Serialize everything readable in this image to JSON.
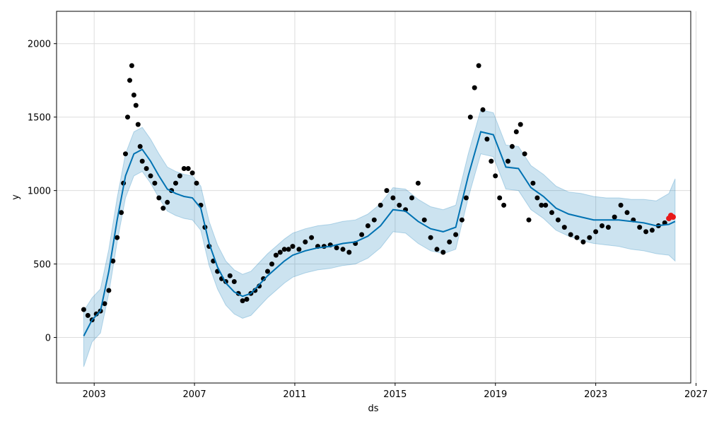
{
  "chart_data": {
    "type": "line",
    "title": "",
    "xlabel": "ds",
    "ylabel": "y",
    "x_ticks": [
      "2003",
      "2007",
      "2011",
      "2015",
      "2019",
      "2023",
      "2027"
    ],
    "y_ticks": [
      "0",
      "500",
      "1000",
      "1500",
      "2000"
    ],
    "xlim": [
      "2001-07-01",
      "2026-10-15"
    ],
    "ylim": [
      -310,
      2220
    ],
    "grid": true,
    "colors": {
      "forecast_line": "#0072B2",
      "uncertainty_band": "#0072B2",
      "observed_points": "#000000",
      "highlight_points": "#e8191a"
    },
    "series": [
      {
        "kind": "observed",
        "x": [
          "2002-08",
          "2002-10",
          "2002-12",
          "2003-02",
          "2003-04",
          "2003-06",
          "2003-08",
          "2003-10",
          "2003-12",
          "2004-02",
          "2004-03",
          "2004-04",
          "2004-05",
          "2004-06",
          "2004-07",
          "2004-08",
          "2004-09",
          "2004-10",
          "2004-11",
          "2004-12",
          "2005-02",
          "2005-04",
          "2005-06",
          "2005-08",
          "2005-10",
          "2005-12",
          "2006-02",
          "2006-04",
          "2006-06",
          "2006-08",
          "2006-10",
          "2006-12",
          "2007-02",
          "2007-04",
          "2007-06",
          "2007-08",
          "2007-10",
          "2007-12",
          "2008-02",
          "2008-04",
          "2008-06",
          "2008-08",
          "2008-10",
          "2008-12",
          "2009-02",
          "2009-04",
          "2009-06",
          "2009-08",
          "2009-10",
          "2009-12",
          "2010-02",
          "2010-04",
          "2010-06",
          "2010-08",
          "2010-10",
          "2010-12",
          "2011-03",
          "2011-06",
          "2011-09",
          "2011-12",
          "2012-03",
          "2012-06",
          "2012-09",
          "2012-12",
          "2013-03",
          "2013-06",
          "2013-09",
          "2013-12",
          "2014-03",
          "2014-06",
          "2014-09",
          "2014-12",
          "2015-03",
          "2015-06",
          "2015-09",
          "2015-12",
          "2016-03",
          "2016-06",
          "2016-09",
          "2016-12",
          "2017-03",
          "2017-06",
          "2017-09",
          "2017-11",
          "2018-01",
          "2018-03",
          "2018-05",
          "2018-07",
          "2018-09",
          "2018-11",
          "2019-01",
          "2019-03",
          "2019-05",
          "2019-07",
          "2019-09",
          "2019-11",
          "2020-01",
          "2020-03",
          "2020-05",
          "2020-07",
          "2020-09",
          "2020-11",
          "2021-01",
          "2021-04",
          "2021-07",
          "2021-10",
          "2022-01",
          "2022-04",
          "2022-07",
          "2022-10",
          "2023-01",
          "2023-04",
          "2023-07",
          "2023-10",
          "2024-01",
          "2024-04",
          "2024-07",
          "2024-10",
          "2025-01",
          "2025-04",
          "2025-07",
          "2025-10",
          "2026-01"
        ],
        "y": [
          190,
          150,
          120,
          160,
          180,
          230,
          320,
          520,
          680,
          850,
          1050,
          1250,
          1500,
          1750,
          1850,
          1650,
          1580,
          1450,
          1300,
          1200,
          1150,
          1100,
          1050,
          950,
          880,
          920,
          1000,
          1050,
          1100,
          1150,
          1150,
          1120,
          1050,
          900,
          750,
          620,
          520,
          450,
          400,
          380,
          420,
          380,
          300,
          250,
          260,
          300,
          320,
          350,
          400,
          450,
          500,
          560,
          580,
          600,
          600,
          620,
          600,
          650,
          680,
          620,
          620,
          630,
          610,
          600,
          580,
          640,
          700,
          760,
          800,
          900,
          1000,
          950,
          900,
          870,
          950,
          1050,
          800,
          680,
          600,
          580,
          650,
          700,
          800,
          950,
          1500,
          1700,
          1850,
          1550,
          1350,
          1200,
          1100,
          950,
          900,
          1200,
          1300,
          1400,
          1450,
          1250,
          800,
          1050,
          950,
          900,
          900,
          850,
          800,
          750,
          700,
          680,
          650,
          680,
          720,
          760,
          750,
          820,
          900,
          850,
          800,
          750,
          720,
          730,
          760,
          780,
          830
        ]
      },
      {
        "kind": "highlight",
        "x": [
          "2025-12",
          "2026-01",
          "2026-02"
        ],
        "y": [
          810,
          830,
          820
        ]
      }
    ],
    "forecast": {
      "x": [
        "2002-08",
        "2002-12",
        "2003-04",
        "2003-08",
        "2003-12",
        "2004-04",
        "2004-08",
        "2004-12",
        "2005-04",
        "2005-08",
        "2005-12",
        "2006-04",
        "2006-08",
        "2006-12",
        "2007-04",
        "2007-08",
        "2007-12",
        "2008-04",
        "2008-08",
        "2008-12",
        "2009-04",
        "2009-08",
        "2009-12",
        "2010-04",
        "2010-08",
        "2010-12",
        "2011-06",
        "2011-12",
        "2012-06",
        "2012-12",
        "2013-06",
        "2013-12",
        "2014-06",
        "2014-12",
        "2015-06",
        "2015-12",
        "2016-06",
        "2016-12",
        "2017-06",
        "2017-12",
        "2018-06",
        "2018-12",
        "2019-06",
        "2019-12",
        "2020-06",
        "2020-12",
        "2021-06",
        "2021-12",
        "2022-06",
        "2022-12",
        "2023-06",
        "2023-12",
        "2024-06",
        "2024-12",
        "2025-06",
        "2025-12",
        "2026-03"
      ],
      "yhat": [
        10,
        120,
        180,
        450,
        800,
        1100,
        1250,
        1280,
        1200,
        1100,
        1010,
        980,
        960,
        950,
        880,
        640,
        480,
        370,
        310,
        280,
        300,
        360,
        420,
        470,
        520,
        560,
        590,
        610,
        620,
        640,
        650,
        690,
        760,
        870,
        860,
        790,
        740,
        720,
        750,
        1100,
        1400,
        1380,
        1160,
        1150,
        1020,
        960,
        880,
        840,
        820,
        800,
        800,
        800,
        790,
        780,
        760,
        770,
        790
      ],
      "yhat_lower": [
        -200,
        -30,
        30,
        300,
        650,
        950,
        1100,
        1130,
        1050,
        950,
        860,
        830,
        810,
        800,
        730,
        490,
        330,
        220,
        160,
        130,
        150,
        210,
        270,
        320,
        370,
        410,
        440,
        460,
        470,
        490,
        500,
        540,
        610,
        720,
        710,
        640,
        590,
        570,
        600,
        950,
        1250,
        1230,
        1010,
        1000,
        870,
        810,
        730,
        690,
        660,
        640,
        630,
        620,
        600,
        590,
        570,
        560,
        520
      ],
      "yhat_upper": [
        180,
        270,
        330,
        600,
        950,
        1250,
        1400,
        1430,
        1350,
        1250,
        1160,
        1130,
        1110,
        1100,
        1030,
        790,
        630,
        520,
        460,
        430,
        450,
        510,
        570,
        620,
        670,
        710,
        740,
        760,
        770,
        790,
        800,
        840,
        910,
        1020,
        1010,
        940,
        890,
        870,
        900,
        1250,
        1550,
        1530,
        1310,
        1300,
        1170,
        1110,
        1030,
        990,
        980,
        960,
        950,
        950,
        940,
        940,
        930,
        980,
        1080
      ]
    }
  }
}
